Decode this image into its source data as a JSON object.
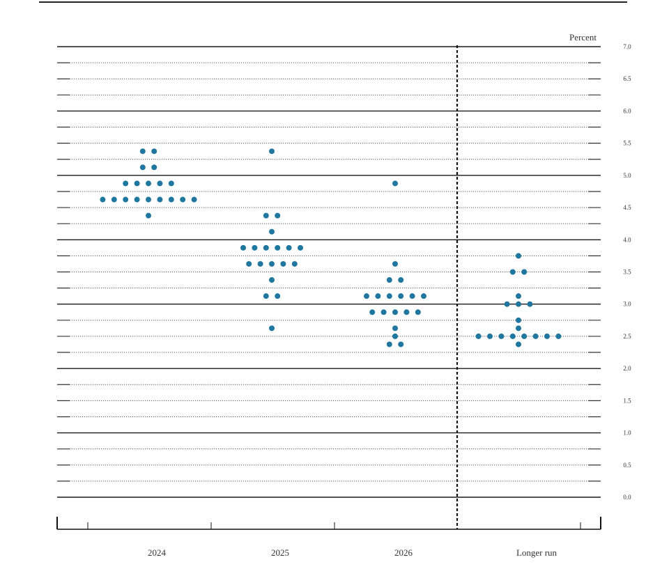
{
  "chart_data": {
    "type": "scatter",
    "title": "",
    "unit_label": "Percent",
    "xlabel": "",
    "ylabel": "",
    "ylim": [
      0.0,
      7.0
    ],
    "y_ticks": [
      "0.0",
      "0.5",
      "1.0",
      "1.5",
      "2.0",
      "2.5",
      "3.0",
      "3.5",
      "4.0",
      "4.5",
      "5.0",
      "5.5",
      "6.0",
      "6.5",
      "7.0"
    ],
    "solid_gridlines_every": 1.0,
    "dotted_gridlines_every": 0.25,
    "categories": [
      "2024",
      "2025",
      "2026",
      "Longer run"
    ],
    "dot_color": "#1f77a0",
    "series": [
      {
        "category": "2024",
        "dots": [
          {
            "y": 5.375,
            "count": 2
          },
          {
            "y": 5.125,
            "count": 2
          },
          {
            "y": 4.875,
            "count": 5
          },
          {
            "y": 4.625,
            "count": 9
          },
          {
            "y": 4.375,
            "count": 1
          }
        ]
      },
      {
        "category": "2025",
        "dots": [
          {
            "y": 5.375,
            "count": 1
          },
          {
            "y": 4.375,
            "count": 2
          },
          {
            "y": 4.125,
            "count": 1
          },
          {
            "y": 3.875,
            "count": 6
          },
          {
            "y": 3.625,
            "count": 5
          },
          {
            "y": 3.375,
            "count": 1
          },
          {
            "y": 3.125,
            "count": 2
          },
          {
            "y": 2.625,
            "count": 1
          }
        ]
      },
      {
        "category": "2026",
        "dots": [
          {
            "y": 4.875,
            "count": 1
          },
          {
            "y": 3.625,
            "count": 1
          },
          {
            "y": 3.375,
            "count": 2
          },
          {
            "y": 3.125,
            "count": 6
          },
          {
            "y": 2.875,
            "count": 5
          },
          {
            "y": 2.625,
            "count": 1
          },
          {
            "y": 2.5,
            "count": 1
          },
          {
            "y": 2.375,
            "count": 2
          }
        ]
      },
      {
        "category": "Longer run",
        "dots": [
          {
            "y": 3.75,
            "count": 1
          },
          {
            "y": 3.5,
            "count": 2
          },
          {
            "y": 3.125,
            "count": 1
          },
          {
            "y": 3.0,
            "count": 3
          },
          {
            "y": 2.75,
            "count": 1
          },
          {
            "y": 2.625,
            "count": 1
          },
          {
            "y": 2.5,
            "count": 8
          },
          {
            "y": 2.375,
            "count": 1
          }
        ]
      }
    ]
  }
}
